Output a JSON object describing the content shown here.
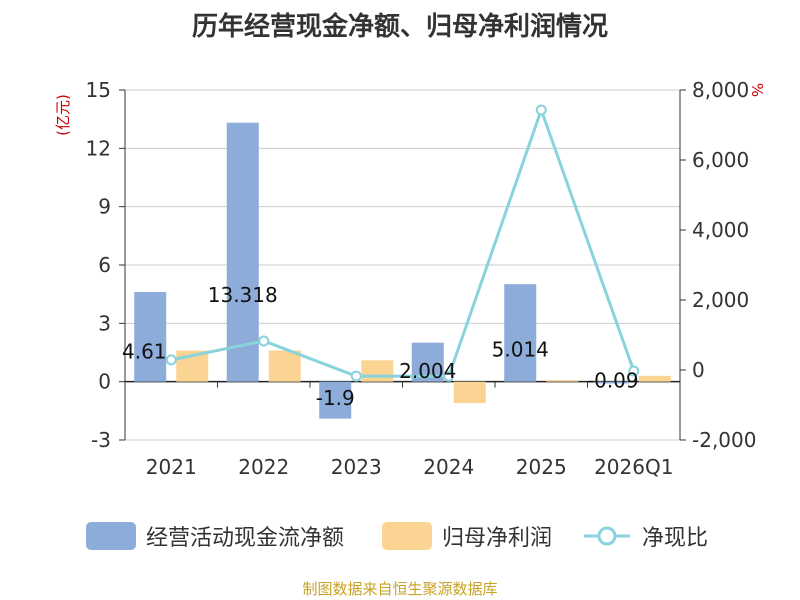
{
  "title": "历年经营现金净额、归母净利润情况",
  "source": "制图数据来自恒生聚源数据库",
  "colors": {
    "cash": "#8eacd9",
    "profit": "#fbd494",
    "ratio": "#88d3dc",
    "unit": "#cc0000",
    "source": "#c9a227"
  },
  "chart_data": {
    "type": "bar",
    "title": "历年经营现金净额、归母净利润情况",
    "categories": [
      "2021",
      "2022",
      "2023",
      "2024",
      "2025",
      "2026Q1"
    ],
    "y_left": {
      "unit": "(亿元)",
      "ylim": [
        -3,
        15
      ],
      "ticks": [
        "-3",
        "0",
        "3",
        "6",
        "9",
        "12",
        "15"
      ],
      "tick_values": [
        -3,
        0,
        3,
        6,
        9,
        12,
        15
      ]
    },
    "y_right": {
      "unit": "%",
      "ylim": [
        -2000,
        8000
      ],
      "ticks": [
        "-2,000",
        "0",
        "2,000",
        "4,000",
        "6,000",
        "8,000"
      ],
      "tick_values": [
        -2000,
        0,
        2000,
        4000,
        6000,
        8000
      ]
    },
    "series": [
      {
        "name": "经营活动现金流净额",
        "type": "bar",
        "axis": "left",
        "values": [
          4.61,
          13.318,
          -1.9,
          2.004,
          5.014,
          -0.09
        ],
        "labels": [
          "4.61",
          "13.318",
          "-1.9",
          "2.004",
          "5.014",
          "-0.09"
        ]
      },
      {
        "name": "归母净利润",
        "type": "bar",
        "axis": "left",
        "values": [
          1.6,
          1.6,
          1.1,
          -1.1,
          0.08,
          0.3
        ]
      },
      {
        "name": "净现比",
        "type": "line",
        "axis": "right",
        "values": [
          290,
          830,
          -175,
          -180,
          7430,
          -30
        ]
      }
    ],
    "grid": true,
    "legend_position": "bottom"
  },
  "legend": [
    {
      "label": "经营活动现金流净额",
      "kind": "bar",
      "color": "#8eacd9"
    },
    {
      "label": "归母净利润",
      "kind": "bar",
      "color": "#fbd494"
    },
    {
      "label": "净现比",
      "kind": "line",
      "color": "#88d3dc"
    }
  ]
}
